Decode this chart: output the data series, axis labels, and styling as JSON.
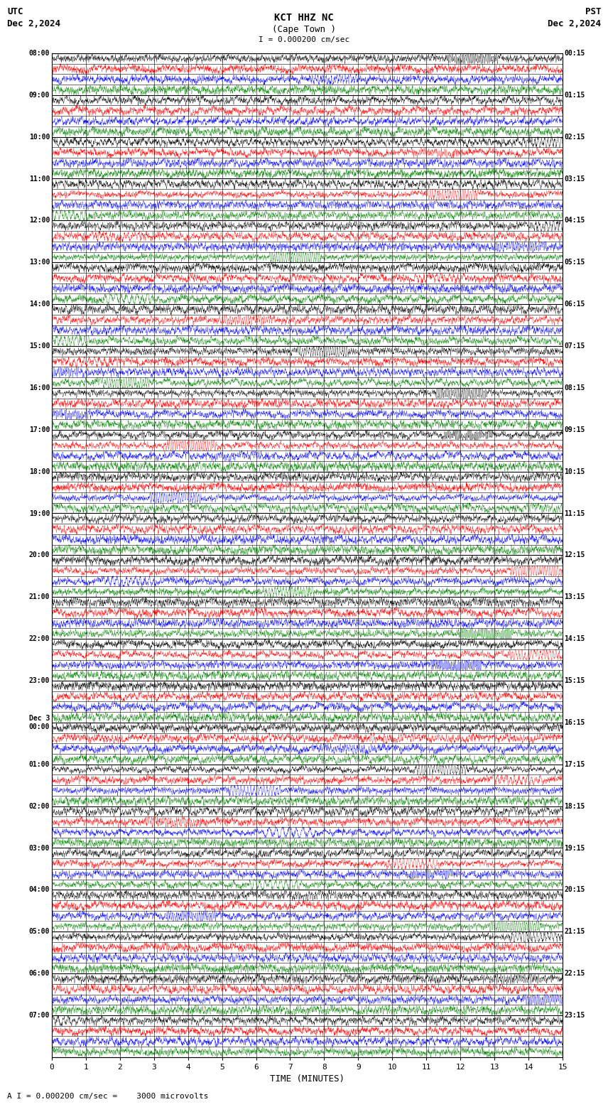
{
  "title_line1": "KCT HHZ NC",
  "title_line2": "(Cape Town )",
  "scale_label": "I = 0.000200 cm/sec",
  "left_label_line1": "UTC",
  "left_label_line2": "Dec 2,2024",
  "right_label_line1": "PST",
  "right_label_line2": "Dec 2,2024",
  "bottom_note": "A I = 0.000200 cm/sec =    3000 microvolts",
  "xlabel": "TIME (MINUTES)",
  "x_ticks": [
    0,
    1,
    2,
    3,
    4,
    5,
    6,
    7,
    8,
    9,
    10,
    11,
    12,
    13,
    14,
    15
  ],
  "left_times": [
    "08:00",
    "09:00",
    "10:00",
    "11:00",
    "12:00",
    "13:00",
    "14:00",
    "15:00",
    "16:00",
    "17:00",
    "18:00",
    "19:00",
    "20:00",
    "21:00",
    "22:00",
    "23:00",
    "Dec 3\n00:00",
    "01:00",
    "02:00",
    "03:00",
    "04:00",
    "05:00",
    "06:00",
    "07:00"
  ],
  "right_times": [
    "00:15",
    "01:15",
    "02:15",
    "03:15",
    "04:15",
    "05:15",
    "06:15",
    "07:15",
    "08:15",
    "09:15",
    "10:15",
    "11:15",
    "12:15",
    "13:15",
    "14:15",
    "15:15",
    "16:15",
    "17:15",
    "18:15",
    "19:15",
    "20:15",
    "21:15",
    "22:15",
    "23:15"
  ],
  "n_rows": 24,
  "n_subrows": 4,
  "colors": [
    "black",
    "red",
    "blue",
    "green"
  ],
  "background": "white",
  "fig_width": 8.5,
  "fig_height": 15.84,
  "dpi": 100
}
